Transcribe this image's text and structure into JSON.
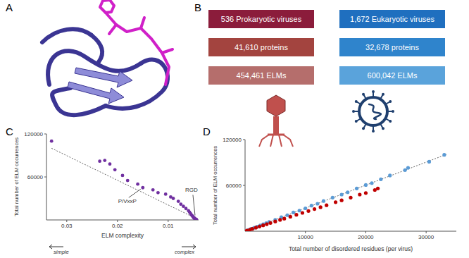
{
  "panel_labels": [
    "A",
    "B",
    "C",
    "D"
  ],
  "panel_b": {
    "columns": [
      {
        "boxes": [
          {
            "text": "536 Prokaryotic viruses",
            "color": "#8b1c3b"
          },
          {
            "text": "41,610 proteins",
            "color": "#a3443f"
          },
          {
            "text": "454,461 ELMs",
            "color": "#b56e6c"
          }
        ]
      },
      {
        "boxes": [
          {
            "text": "1,672 Eukaryotic viruses",
            "color": "#1f6fbf"
          },
          {
            "text": "32,678 proteins",
            "color": "#2f84cc"
          },
          {
            "text": "600,042 ELMs",
            "color": "#5aa3db"
          }
        ]
      }
    ]
  },
  "chart_data": [
    {
      "type": "scatter",
      "xlabel": "ELM complexity",
      "ylabel": "Total number of ELM occurrences",
      "xlim": [
        0.034,
        0.004
      ],
      "xticks": [
        0.03,
        0.02,
        0.01
      ],
      "ylim": [
        0,
        120000
      ],
      "yticks": [
        60000,
        120000
      ],
      "color": "#7030a0",
      "marker": "circle",
      "x": [
        0.033,
        0.0235,
        0.0225,
        0.0215,
        0.0205,
        0.019,
        0.018,
        0.016,
        0.015,
        0.013,
        0.012,
        0.0105,
        0.0095,
        0.009,
        0.008,
        0.0075,
        0.007,
        0.0065,
        0.006,
        0.0058,
        0.0056,
        0.0054,
        0.0052,
        0.0051,
        0.005,
        0.0049,
        0.0048,
        0.0047,
        0.0046,
        0.0045,
        0.0045,
        0.0044
      ],
      "values": [
        110000,
        82000,
        83000,
        78000,
        70000,
        62000,
        55000,
        50000,
        45000,
        42000,
        38000,
        36000,
        32000,
        30000,
        26000,
        22000,
        19000,
        16000,
        13000,
        11000,
        9000,
        7000,
        5500,
        4500,
        3500,
        2800,
        2200,
        1500,
        1000,
        800,
        500,
        300
      ],
      "trend": {
        "x": [
          0.033,
          0.0045
        ],
        "values": [
          100000,
          2000
        ],
        "line_style": "dotted"
      },
      "direction_labels": [
        "simple",
        "complex"
      ],
      "annotations": [
        {
          "text": "P/VxxP",
          "x": 0.015,
          "y": 45000
        },
        {
          "text": "RGD",
          "x": 0.0047,
          "y": 1500
        }
      ]
    },
    {
      "type": "scatter",
      "xlabel": "Total number of disordered residues (per virus)",
      "ylabel": "Total number of ELM occurrences",
      "xlim": [
        0,
        35000
      ],
      "xticks": [
        10000,
        20000,
        30000
      ],
      "ylim": [
        0,
        120000
      ],
      "yticks": [
        60000,
        120000
      ],
      "marker": "circle",
      "series": [
        {
          "color": "#5b9bd5",
          "x": [
            500,
            1000,
            1500,
            2000,
            2500,
            3000,
            3500,
            4000,
            5000,
            6000,
            7000,
            8000,
            9000,
            10000,
            11000,
            12000,
            13000,
            14500,
            16000,
            17000,
            18500,
            20000,
            21000,
            22500,
            24000,
            26500,
            27000,
            30500,
            33000
          ],
          "values": [
            1600,
            3100,
            4500,
            6000,
            7600,
            9200,
            10500,
            12200,
            15000,
            18300,
            21000,
            24500,
            27000,
            30000,
            33500,
            36000,
            39500,
            44000,
            48000,
            51000,
            56000,
            60500,
            63000,
            68000,
            73000,
            80000,
            83000,
            91000,
            100000
          ]
        },
        {
          "color": "#c00000",
          "x": [
            300,
            800,
            1200,
            1800,
            2400,
            3000,
            3600,
            4200,
            5000,
            5800,
            6500,
            7500,
            8500,
            9500,
            10500,
            11500,
            12500,
            13500,
            15000,
            16000,
            17500,
            19000,
            20000,
            21500,
            22000
          ],
          "values": [
            800,
            2100,
            3100,
            4700,
            6200,
            7700,
            9200,
            10800,
            12800,
            14800,
            16500,
            19000,
            21500,
            24000,
            26500,
            29000,
            31500,
            34000,
            38000,
            40500,
            44000,
            48000,
            50000,
            54000,
            56000
          ]
        }
      ],
      "trend": {
        "x": [
          0,
          33500
        ],
        "values": [
          0,
          101000
        ],
        "line_style": "dotted"
      }
    }
  ]
}
